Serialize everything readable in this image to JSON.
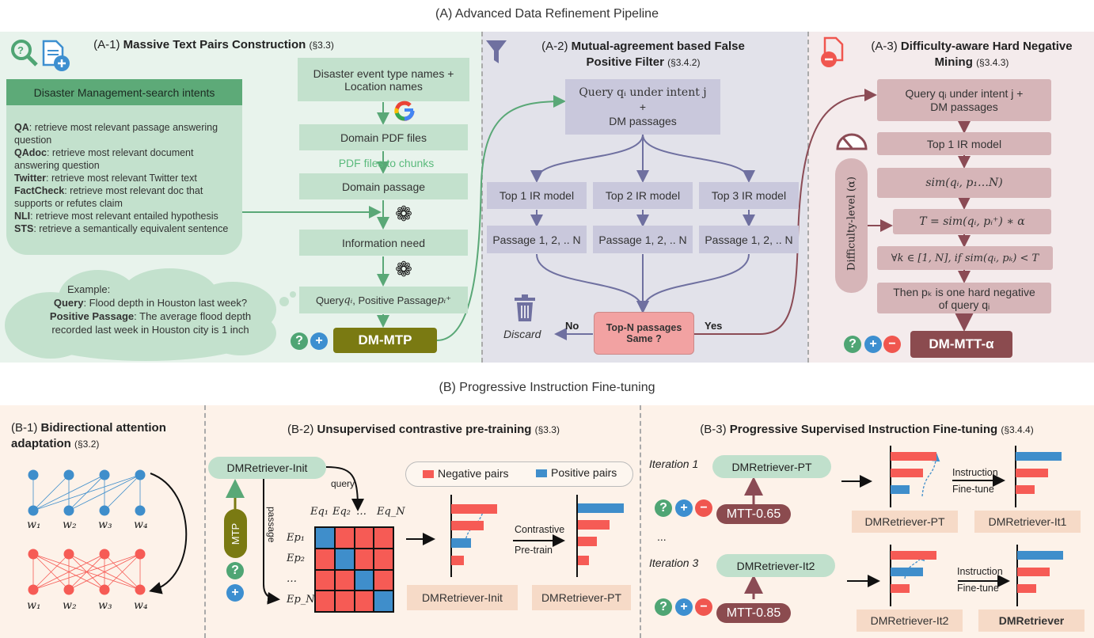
{
  "sections": {
    "a_title": "(A) Advanced Data Refinement Pipeline",
    "b_title": "(B) Progressive Instruction Fine-tuning"
  },
  "badges": {
    "question": "?",
    "plus": "+",
    "minus": "−"
  },
  "colors": {
    "green_panel": "#e8f3ec",
    "purple_panel": "#e2e2ea",
    "red_panel": "#f4ebec",
    "b_panel": "#fdf2e9",
    "negative": "#f65b55",
    "positive": "#3f8ecb",
    "olive": "#7a7a12",
    "maroon": "#8b4b4f"
  },
  "a1": {
    "id": "(A-1)",
    "name": "Massive Text Pairs Construction",
    "ref": "(§3.3)",
    "icons": [
      "search-question-icon",
      "document-plus-icon",
      "google-icon",
      "openai-icon"
    ],
    "intents_header": "Disaster Management-search  intents",
    "intents": [
      {
        "label": "QA",
        "text": ": retrieve most relevant passage answering question"
      },
      {
        "label": "QAdoc",
        "text": ": retrieve most relevant document answering question"
      },
      {
        "label": "Twitter",
        "text": ": retrieve most relevant Twitter text"
      },
      {
        "label": "FactCheck",
        "text": ": retrieve most relevant doc that supports or refutes claim"
      },
      {
        "label": "NLI",
        "text": ": retrieve most relevant entailed hypothesis"
      },
      {
        "label": "STS",
        "text": ": retrieve a semantically equivalent sentence"
      }
    ],
    "steps": {
      "source_line1": "Disaster event type names +",
      "source_line2": "Location names",
      "pdf": "Domain PDF files",
      "chunks": "PDF files  to chunks",
      "passage": "Domain passage",
      "need": "Information need",
      "query_prefix": "Query ",
      "query_var": "qᵢ",
      "query_mid": " , Positive Passage ",
      "query_pos": "pᵢ⁺"
    },
    "example": {
      "heading": "Example:",
      "query_label": "Query",
      "query": ": Flood depth in Houston last week?",
      "pos_label": "Positive Passage",
      "pos": ": The average flood depth recorded last week in Houston city is 1 inch"
    },
    "output": "DM-MTP"
  },
  "a2": {
    "id": "(A-2)",
    "name_line1": "Mutual-agreement based False",
    "name_line2": "Positive Filter",
    "ref": "(§3.4.2)",
    "query_line1": "Query qᵢ under intent j",
    "query_plus": "+",
    "query_line2": "DM passages",
    "models": [
      "Top 1 IR model",
      "Top 2 IR model",
      "Top 3 IR model"
    ],
    "passages": [
      "Passage 1, 2, .. N",
      "Passage 1, 2, .. N",
      "Passage 1, 2, .. N"
    ],
    "decision_line1": "Top-N passages",
    "decision_line2": "Same ?",
    "no": "No",
    "yes": "Yes",
    "discard": "Discard"
  },
  "a3": {
    "id": "(A-3)",
    "name_line1": "Difficulty-aware Hard Negative",
    "name_line2": "Mining",
    "ref": "(§3.4.3)",
    "query_line1": "Query qᵢ under intent j +",
    "query_line2": "DM passages",
    "top1": "Top 1 IR model",
    "sim": "sim(qᵢ, p₁…N)",
    "threshold": "T = sim(qᵢ, pᵢ⁺) ∗ α",
    "condition": "∀k ∈ [1, N], if sim(qᵢ, pₖ) < T",
    "then_line1": "Then pₖ is one hard negative",
    "then_line2": "of query qᵢ",
    "difficulty": "Difficulty-level  (α)",
    "output": "DM-MTT-α"
  },
  "b1": {
    "id": "(B-1)",
    "name_line1": "Bidirectional attention",
    "name_line2": "adaptation",
    "ref": "(§3.2)",
    "tokens": [
      "w₁",
      "w₂",
      "w₃",
      "w₄"
    ]
  },
  "b2": {
    "id": "(B-2)",
    "name": "Unsupervised contrastive pre-training",
    "ref": "(§3.3)",
    "model": "DMRetriever-Init",
    "mtp": "MTP",
    "query": "query",
    "passage": "passage",
    "cols": [
      "Eq₁",
      "Eq₂",
      "…",
      "Eq_N"
    ],
    "rows": [
      "Ep₁",
      "Ep₂",
      "…",
      "Ep_N"
    ],
    "legend": {
      "negative": "Negative pairs",
      "positive": "Positive pairs"
    },
    "arrow_line1": "Contrastive",
    "arrow_line2": "Pre-train",
    "before": "DMRetriever-Init",
    "after": "DMRetriever-PT"
  },
  "b3": {
    "id": "(B-3)",
    "name": "Progressive Supervised Instruction Fine-tuning",
    "ref": "(§3.4.4)",
    "iterations": [
      {
        "label": "Iteration 1",
        "model": "DMRetriever-PT",
        "data": "MTT-0.65",
        "before": "DMRetriever-PT",
        "after": "DMRetriever-It1"
      },
      {
        "label": "Iteration 3",
        "model": "DMRetriever-It2",
        "data": "MTT-0.85",
        "before": "DMRetriever-It2",
        "after": "DMRetriever"
      }
    ],
    "ellipsis": "...",
    "arrow_line1": "Instruction",
    "arrow_line2": "Fine-tune"
  }
}
